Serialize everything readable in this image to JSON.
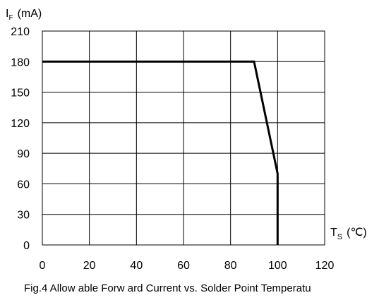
{
  "chart_data": {
    "type": "line",
    "title": "Fig.4 Allow able Forw ard Current vs. Solder Point Temperatu",
    "xlabel": {
      "main": "T",
      "sub": "S",
      "unit": "(℃)"
    },
    "ylabel": {
      "main": "I",
      "sub": "F",
      "unit": "(mA)"
    },
    "xlim": [
      0,
      120
    ],
    "ylim": [
      0,
      210
    ],
    "x_ticks": [
      0,
      20,
      40,
      60,
      80,
      100,
      120
    ],
    "y_ticks": [
      0,
      30,
      60,
      90,
      120,
      150,
      180,
      210
    ],
    "grid": true,
    "series": [
      {
        "x": [
          0,
          90,
          100,
          100
        ],
        "y": [
          180,
          180,
          70,
          0
        ]
      }
    ]
  }
}
